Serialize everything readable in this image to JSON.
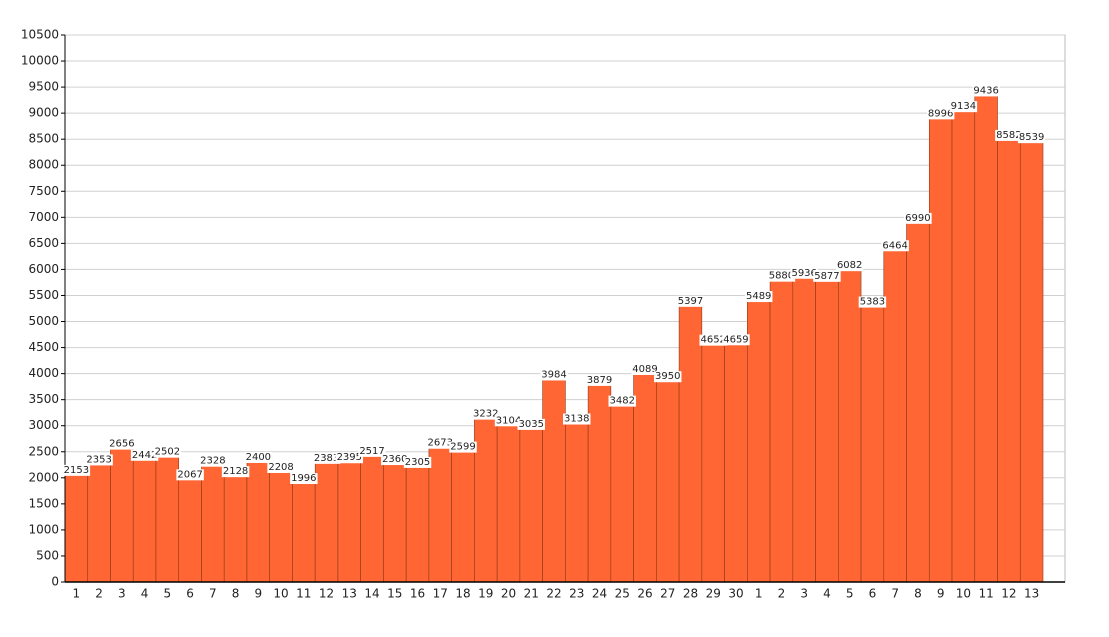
{
  "chart_data": {
    "type": "bar",
    "categories": [
      "1",
      "2",
      "3",
      "4",
      "5",
      "6",
      "7",
      "8",
      "9",
      "10",
      "11",
      "12",
      "13",
      "14",
      "15",
      "16",
      "17",
      "18",
      "19",
      "20",
      "21",
      "22",
      "23",
      "24",
      "25",
      "26",
      "27",
      "28",
      "29",
      "30",
      "1",
      "2",
      "3",
      "4",
      "5",
      "6",
      "7",
      "8",
      "9",
      "10",
      "11",
      "12",
      "13"
    ],
    "values": [
      2153,
      2353,
      2656,
      2442,
      2502,
      2067,
      2328,
      2128,
      2400,
      2208,
      1996,
      2383,
      2395,
      2517,
      2360,
      2305,
      2673,
      2599,
      3232,
      3104,
      3035,
      3984,
      3138,
      3879,
      3482,
      4089,
      3950,
      5397,
      4652,
      4659,
      5489,
      5880,
      5936,
      5877,
      6082,
      5383,
      6464,
      6990,
      8996,
      9134,
      9436,
      8582,
      8539
    ],
    "color": "#ff6633",
    "ylim": [
      0,
      10500
    ],
    "yticks": [
      0,
      500,
      1000,
      1500,
      2000,
      2500,
      3000,
      3500,
      4000,
      4500,
      5000,
      5500,
      6000,
      6500,
      7000,
      7500,
      8000,
      8500,
      9000,
      9500,
      10000,
      10500
    ],
    "grid": true
  }
}
